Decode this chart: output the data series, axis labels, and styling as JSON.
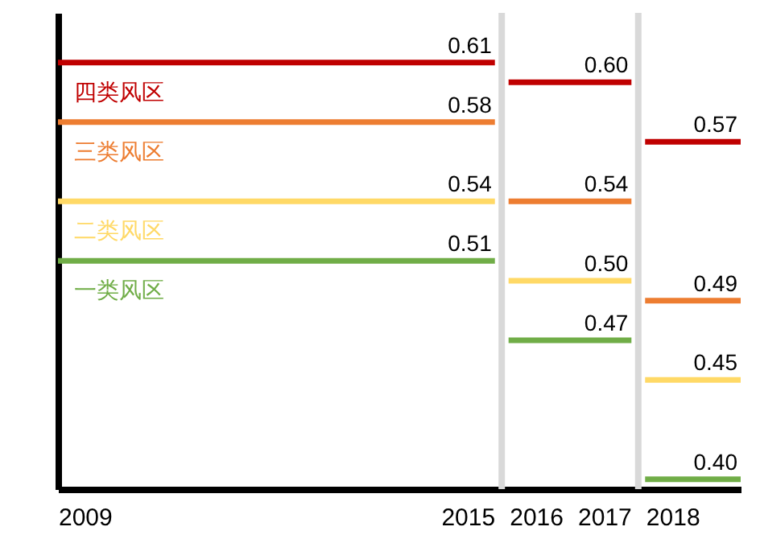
{
  "chart_data": {
    "type": "line",
    "xlim": [
      2009,
      2019
    ],
    "ylim": [
      0.395,
      0.635
    ],
    "xticks": [
      2009,
      2015,
      2016,
      2017,
      2018
    ],
    "tick_labels": "x",
    "grid": false,
    "legend": false,
    "marker": "none",
    "line_style": "solid",
    "ref_lines": [
      {
        "axis": "x",
        "value": 2015.5,
        "color": "#d9d9d9"
      },
      {
        "axis": "x",
        "value": 2017.5,
        "color": "#d9d9d9"
      }
    ],
    "series": [
      {
        "name": "四类风区",
        "color": "#c00000",
        "x": [
          2009,
          2015.4,
          2015.5,
          2015.6,
          2017.4,
          2017.5,
          2017.6,
          2019
        ],
        "values": [
          0.61,
          0.61,
          null,
          0.6,
          0.6,
          null,
          0.57,
          0.57
        ],
        "value_labels": [
          null,
          "0.61",
          null,
          null,
          "0.60",
          null,
          null,
          "0.57"
        ]
      },
      {
        "name": "三类风区",
        "color": "#ed7d31",
        "x": [
          2009,
          2015.4,
          2015.5,
          2015.6,
          2017.4,
          2017.5,
          2017.6,
          2019
        ],
        "values": [
          0.58,
          0.58,
          null,
          0.54,
          0.54,
          null,
          0.49,
          0.49
        ],
        "value_labels": [
          null,
          "0.58",
          null,
          null,
          "0.54",
          null,
          null,
          "0.49"
        ]
      },
      {
        "name": "二类风区",
        "color": "#ffd966",
        "x": [
          2009,
          2015.4,
          2015.5,
          2015.6,
          2017.4,
          2017.5,
          2017.6,
          2019
        ],
        "values": [
          0.54,
          0.54,
          null,
          0.5,
          0.5,
          null,
          0.45,
          0.45
        ],
        "value_labels": [
          null,
          "0.54",
          null,
          null,
          "0.50",
          null,
          null,
          "0.45"
        ]
      },
      {
        "name": "一类风区",
        "color": "#70ad47",
        "x": [
          2009,
          2015.4,
          2015.5,
          2015.6,
          2017.4,
          2017.5,
          2017.6,
          2019
        ],
        "values": [
          0.51,
          0.51,
          null,
          0.47,
          0.47,
          null,
          0.4,
          0.4
        ],
        "value_labels": [
          null,
          "0.51",
          null,
          null,
          "0.47",
          null,
          null,
          "0.40"
        ]
      }
    ]
  }
}
